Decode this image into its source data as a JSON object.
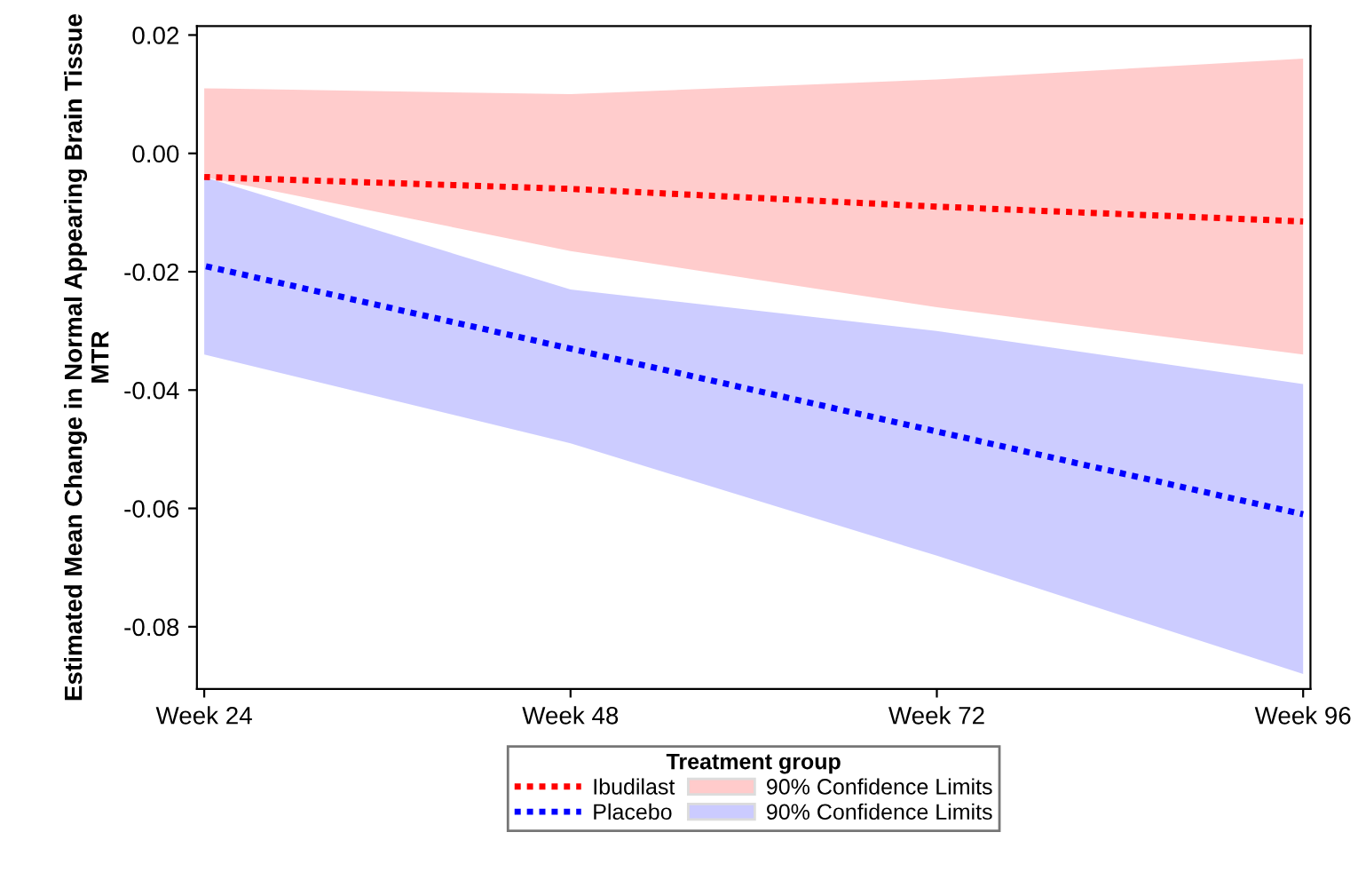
{
  "chart_data": {
    "type": "line",
    "ylabel": "Estimated Mean Change in Normal Appearing Brain Tissue MTR",
    "legend_title": "Treatment group",
    "categories": [
      "Week 24",
      "Week 48",
      "Week 72",
      "Week 96"
    ],
    "series": [
      {
        "name": "Ibudilast",
        "color": "#ff0000",
        "values": [
          -0.004,
          -0.006,
          -0.009,
          -0.0115
        ],
        "lower": [
          -0.004,
          -0.0165,
          -0.026,
          -0.034
        ],
        "upper": [
          0.011,
          0.01,
          0.0125,
          0.016
        ]
      },
      {
        "name": "Placebo",
        "color": "#0000ff",
        "values": [
          -0.019,
          -0.033,
          -0.047,
          -0.061
        ],
        "lower": [
          -0.034,
          -0.049,
          -0.068,
          -0.088
        ],
        "upper": [
          -0.004,
          -0.023,
          -0.03,
          -0.039
        ]
      }
    ],
    "annotations": [
      "90% Confidence Limits",
      "90% Confidence Limits"
    ],
    "ylim": [
      -0.0905,
      0.0215
    ],
    "yticks": [
      {
        "value": 0.02,
        "label": "0.02"
      },
      {
        "value": 0.0,
        "label": "0.00"
      },
      {
        "value": -0.02,
        "label": "-0.02"
      },
      {
        "value": -0.04,
        "label": "-0.04"
      },
      {
        "value": -0.06,
        "label": "-0.06"
      },
      {
        "value": -0.08,
        "label": "-0.08"
      }
    ],
    "grid": false,
    "legend": "bottom",
    "line_style": "dotted",
    "marker": "none"
  }
}
